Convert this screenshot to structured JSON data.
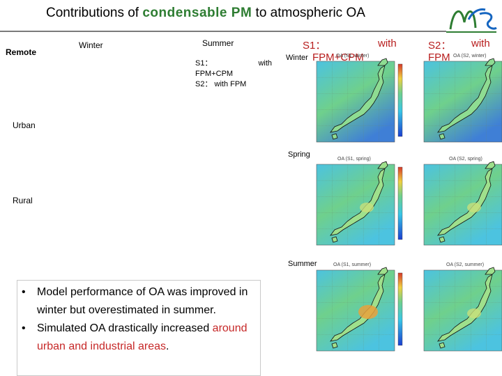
{
  "title": {
    "prefix": "Contributions of ",
    "highlight": "condensable PM",
    "suffix": " to atmospheric OA"
  },
  "row_labels": {
    "remote": "Remote",
    "urban": "Urban",
    "rural": "Rural"
  },
  "season_labels": {
    "winter_left": "Winter",
    "summer_top": "Summer",
    "winter_map": "Winter",
    "spring": "Spring",
    "summer": "Summer"
  },
  "legend": {
    "s1_a": "S1：",
    "s1_with": "with",
    "s1_b": "FPM+CPM",
    "s2": "S2： with FPM"
  },
  "scenario_headers": {
    "s1_title": "S1：",
    "s1_with": "with",
    "s1_sub": "FPM+CPM",
    "s2_title": "S2：",
    "s2_with": "with",
    "s2_sub": "FPM"
  },
  "panel_captions": {
    "s1_winter": "OA (S1, winter)",
    "s2_winter": "OA (S2, winter)",
    "s1_spring": "OA (S1, spring)",
    "s2_spring": "OA (S2, spring)",
    "s1_summer": "OA (S1, summer)",
    "s2_summer": "OA (S2, summer)"
  },
  "bullets": {
    "b1": "Model performance of OA was improved in winter but overestimated in summer.",
    "b2_pre": "Simulated OA drastically increased ",
    "b2_red": "around urban and industrial areas",
    "b2_post": "."
  },
  "colors": {
    "title_highlight": "#2e7d32",
    "scenario_header": "#b71c1c",
    "emphasis": "#c62828",
    "map_ocean_low": "#3f7fd6",
    "map_ocean_mid": "#4cc3e0",
    "map_land_low": "#6fd08c",
    "map_high": "#e9a13b"
  }
}
